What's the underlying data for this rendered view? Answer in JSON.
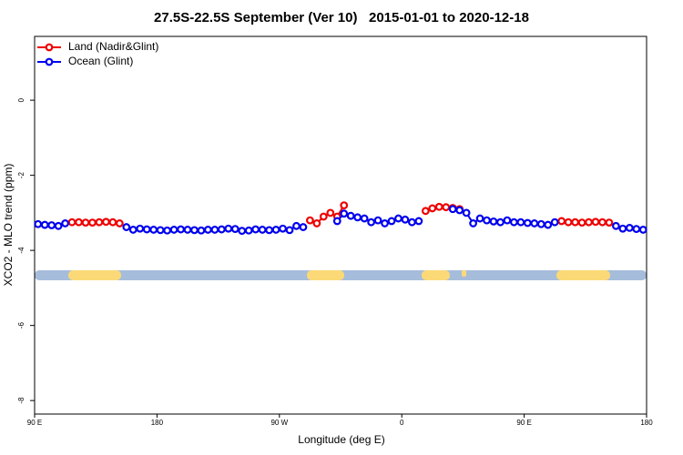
{
  "chart_data": {
    "type": "line",
    "title": "27.5S-22.5S September (Ver 10)   2015-01-01 to 2020-12-18",
    "x_label": "Longitude (deg E)",
    "y_label": "XCO2 - MLO trend (ppm)",
    "xlim": [
      90,
      540
    ],
    "xticks": [
      {
        "value": 90,
        "label": "90 E"
      },
      180,
      {
        "value": 270,
        "label": "90 W"
      },
      {
        "value": 360,
        "label": "0"
      },
      {
        "value": 450,
        "label": "90 E"
      },
      {
        "value": 540,
        "label": "180"
      }
    ],
    "ylim": [
      -8.36,
      1.7
    ],
    "yticks": [
      -8,
      -6,
      -4,
      -2,
      0
    ],
    "legend": "top-left",
    "x": [
      92.5,
      97.5,
      102.5,
      107.5,
      112.5,
      117.5,
      122.5,
      127.5,
      132.5,
      137.5,
      142.5,
      147.5,
      152.5,
      157.5,
      162.5,
      167.5,
      172.5,
      177.5,
      182.5,
      187.5,
      192.5,
      197.5,
      202.5,
      207.5,
      212.5,
      217.5,
      222.5,
      227.5,
      232.5,
      237.5,
      242.5,
      247.5,
      252.5,
      257.5,
      262.5,
      267.5,
      272.5,
      277.5,
      282.5,
      287.5,
      292.5,
      297.5,
      302.5,
      307.5,
      312.5,
      317.5,
      322.5,
      327.5,
      332.5,
      337.5,
      342.5,
      347.5,
      352.5,
      357.5,
      362.5,
      367.5,
      372.5,
      377.5,
      382.5,
      387.5,
      392.5,
      397.5,
      402.5,
      407.5,
      412.5,
      417.5,
      422.5,
      427.5,
      432.5,
      437.5,
      442.5,
      447.5,
      452.5,
      457.5,
      462.5,
      467.5,
      472.5,
      477.5,
      482.5,
      487.5,
      492.5,
      497.5,
      502.5,
      507.5,
      512.5,
      517.5,
      522.5,
      527.5,
      532.5,
      537.5
    ],
    "series": [
      {
        "name": "Land (Nadir&Glint)",
        "color": "#ee0000",
        "values": [
          null,
          null,
          null,
          null,
          null,
          -3.25,
          -3.25,
          -3.26,
          -3.26,
          -3.25,
          -3.24,
          -3.25,
          -3.28,
          null,
          null,
          null,
          null,
          null,
          null,
          null,
          null,
          null,
          null,
          null,
          null,
          null,
          null,
          null,
          null,
          null,
          null,
          null,
          null,
          null,
          null,
          null,
          null,
          null,
          null,
          null,
          -3.2,
          -3.28,
          -3.1,
          -3.0,
          -3.1,
          -2.8,
          null,
          null,
          null,
          null,
          null,
          null,
          null,
          null,
          null,
          null,
          null,
          -2.95,
          -2.88,
          -2.84,
          -2.85,
          -2.87,
          -2.9,
          null,
          null,
          null,
          null,
          null,
          null,
          null,
          null,
          null,
          null,
          null,
          null,
          null,
          null,
          -3.22,
          -3.25,
          -3.25,
          -3.26,
          -3.25,
          -3.24,
          -3.25,
          -3.26,
          null,
          null,
          null,
          null,
          null
        ]
      },
      {
        "name": "Ocean (Glint)",
        "color": "#0000ee",
        "values": [
          -3.3,
          -3.32,
          -3.33,
          -3.35,
          -3.28,
          null,
          null,
          null,
          null,
          null,
          null,
          null,
          null,
          -3.38,
          -3.45,
          -3.42,
          -3.44,
          -3.45,
          -3.46,
          -3.47,
          -3.45,
          -3.44,
          -3.45,
          -3.46,
          -3.47,
          -3.45,
          -3.45,
          -3.44,
          -3.42,
          -3.43,
          -3.48,
          -3.47,
          -3.44,
          -3.45,
          -3.46,
          -3.45,
          -3.42,
          -3.46,
          -3.35,
          -3.38,
          null,
          null,
          null,
          null,
          -3.22,
          -3.02,
          -3.08,
          -3.12,
          -3.15,
          -3.25,
          -3.2,
          -3.28,
          -3.22,
          -3.15,
          -3.18,
          -3.25,
          -3.22,
          null,
          null,
          null,
          null,
          -2.9,
          -2.93,
          -3.0,
          -3.28,
          -3.15,
          -3.2,
          -3.23,
          -3.25,
          -3.2,
          -3.25,
          -3.25,
          -3.27,
          -3.28,
          -3.3,
          -3.32,
          -3.25,
          null,
          null,
          null,
          null,
          null,
          null,
          null,
          null,
          -3.35,
          -3.42,
          -3.4,
          -3.43,
          -3.45
        ]
      }
    ]
  }
}
